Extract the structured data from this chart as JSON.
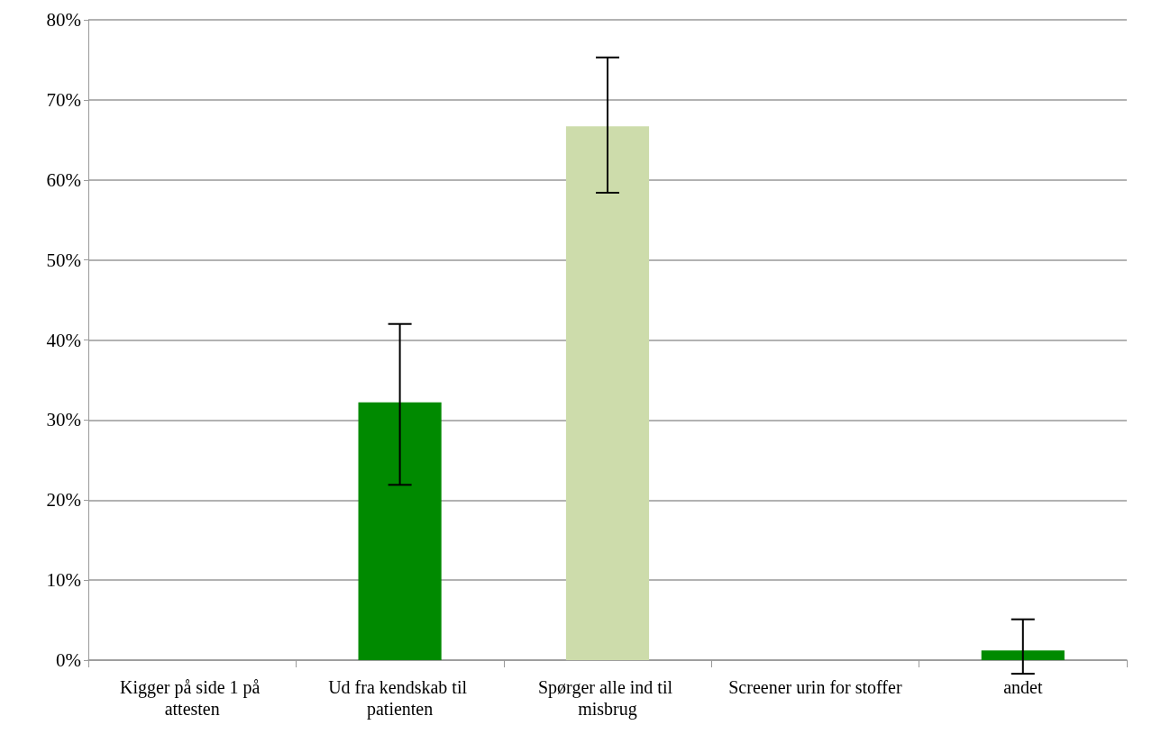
{
  "chart_data": {
    "type": "bar",
    "categories": [
      "Kigger på side 1 på attesten",
      "Ud fra kendskab til patienten",
      "Spørger alle ind til misbrug",
      "Screener urin for stoffer",
      "andet"
    ],
    "values": [
      0,
      32.2,
      66.7,
      0,
      1.2
    ],
    "colors": [
      "#008a00",
      "#008a00",
      "#cddcab",
      "#008a00",
      "#008a00"
    ],
    "errors": [
      null,
      [
        21.9,
        42.0
      ],
      [
        58.4,
        75.3
      ],
      null,
      [
        -1.7,
        5.1
      ]
    ],
    "ylim": [
      0,
      80
    ],
    "yticks": [
      {
        "value": 0,
        "label": "0%"
      },
      {
        "value": 10,
        "label": "10%"
      },
      {
        "value": 20,
        "label": "20%"
      },
      {
        "value": 30,
        "label": "30%"
      },
      {
        "value": 40,
        "label": "40%"
      },
      {
        "value": 50,
        "label": "50%"
      },
      {
        "value": 60,
        "label": "60%"
      },
      {
        "value": 70,
        "label": "70%"
      },
      {
        "value": 80,
        "label": "80%"
      }
    ],
    "grid": "y"
  }
}
